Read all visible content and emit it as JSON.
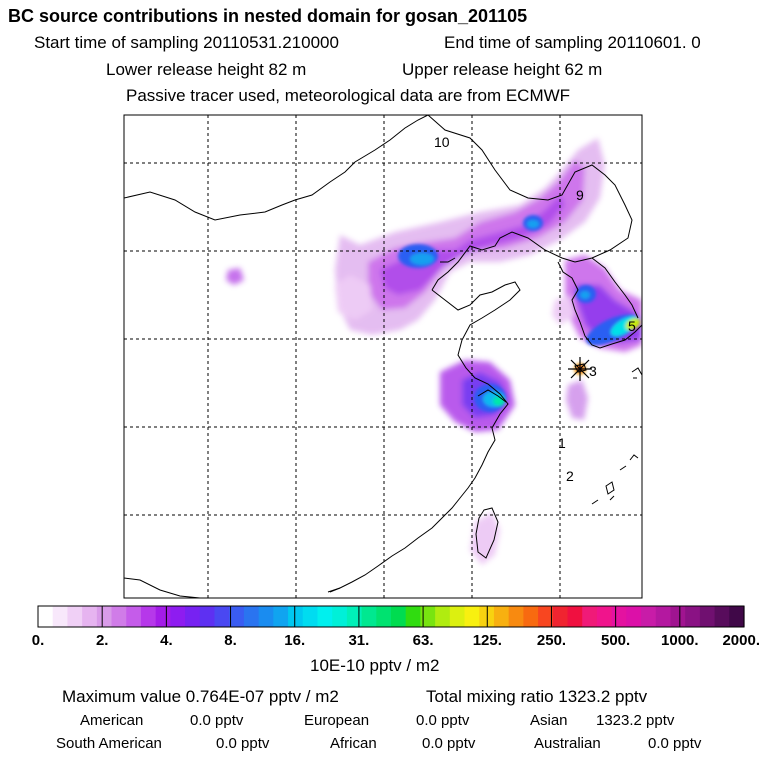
{
  "header": {
    "title": "BC  source contributions in nested domain for gosan_201105",
    "start_label": "Start time of sampling 20110531.210000",
    "end_label": "End time of sampling 20110601.     0",
    "lower_release": "Lower release height   82 m",
    "upper_release": "Upper release height   62 m",
    "tracer_note": "Passive tracer used, meteorological data are from ECMWF"
  },
  "chart_data": {
    "type": "heatmap",
    "title": "BC  source contributions in nested domain for gosan_201105",
    "colorbar": {
      "ticks": [
        "0.",
        "2.",
        "4.",
        "8.",
        "16.",
        "31.",
        "63.",
        "125.",
        "250.",
        "500.",
        "1000.",
        "2000."
      ],
      "colors": [
        "#ffffff",
        "#f8e8fb",
        "#f0d0f6",
        "#e6b4f0",
        "#d99be9",
        "#d07ce8",
        "#c55cea",
        "#b638ea",
        "#a41ce8",
        "#8e1cf0",
        "#7722f2",
        "#5e30f2",
        "#4a48f2",
        "#3a5cf2",
        "#2a74f0",
        "#1a8cf0",
        "#10a4f0",
        "#00c8f0",
        "#00dcf0",
        "#00f0ee",
        "#00f0d8",
        "#00f0b8",
        "#00e890",
        "#00e270",
        "#00dc50",
        "#30dc10",
        "#78e410",
        "#b0ec10",
        "#dcf010",
        "#f8f010",
        "#f8d210",
        "#f8b010",
        "#f88a10",
        "#f86a10",
        "#f84620",
        "#f02430",
        "#f01040",
        "#f01a78",
        "#f0148c",
        "#e412a0",
        "#dc10a8",
        "#c81ca8",
        "#b418a0",
        "#a01490",
        "#8a1284",
        "#701070",
        "#580c5c",
        "#400848"
      ],
      "unit_label": "10E-10 pptv / m2"
    },
    "markers": [
      {
        "label": "10",
        "type": "trajectory-time"
      },
      {
        "label": "9",
        "type": "trajectory-time"
      },
      {
        "label": "5",
        "type": "trajectory-time"
      },
      {
        "label": "3",
        "type": "trajectory-time"
      },
      {
        "label": "1",
        "type": "trajectory-time"
      },
      {
        "label": "2",
        "type": "trajectory-time"
      }
    ],
    "receptor": "gosan",
    "max_value": "0.764E-07",
    "total_mixing_ratio": 1323.2
  },
  "footer": {
    "max_value": "Maximum value  0.764E-07 pptv / m2",
    "total_mixing": "Total mixing ratio     1323.2 pptv",
    "regions": [
      {
        "name": "American",
        "value": "0.0 pptv"
      },
      {
        "name": "European",
        "value": "0.0 pptv"
      },
      {
        "name": "Asian",
        "value": "1323.2 pptv"
      },
      {
        "name": "South American",
        "value": "0.0 pptv"
      },
      {
        "name": "African",
        "value": "0.0 pptv"
      },
      {
        "name": "Australian",
        "value": "0.0 pptv"
      }
    ]
  }
}
